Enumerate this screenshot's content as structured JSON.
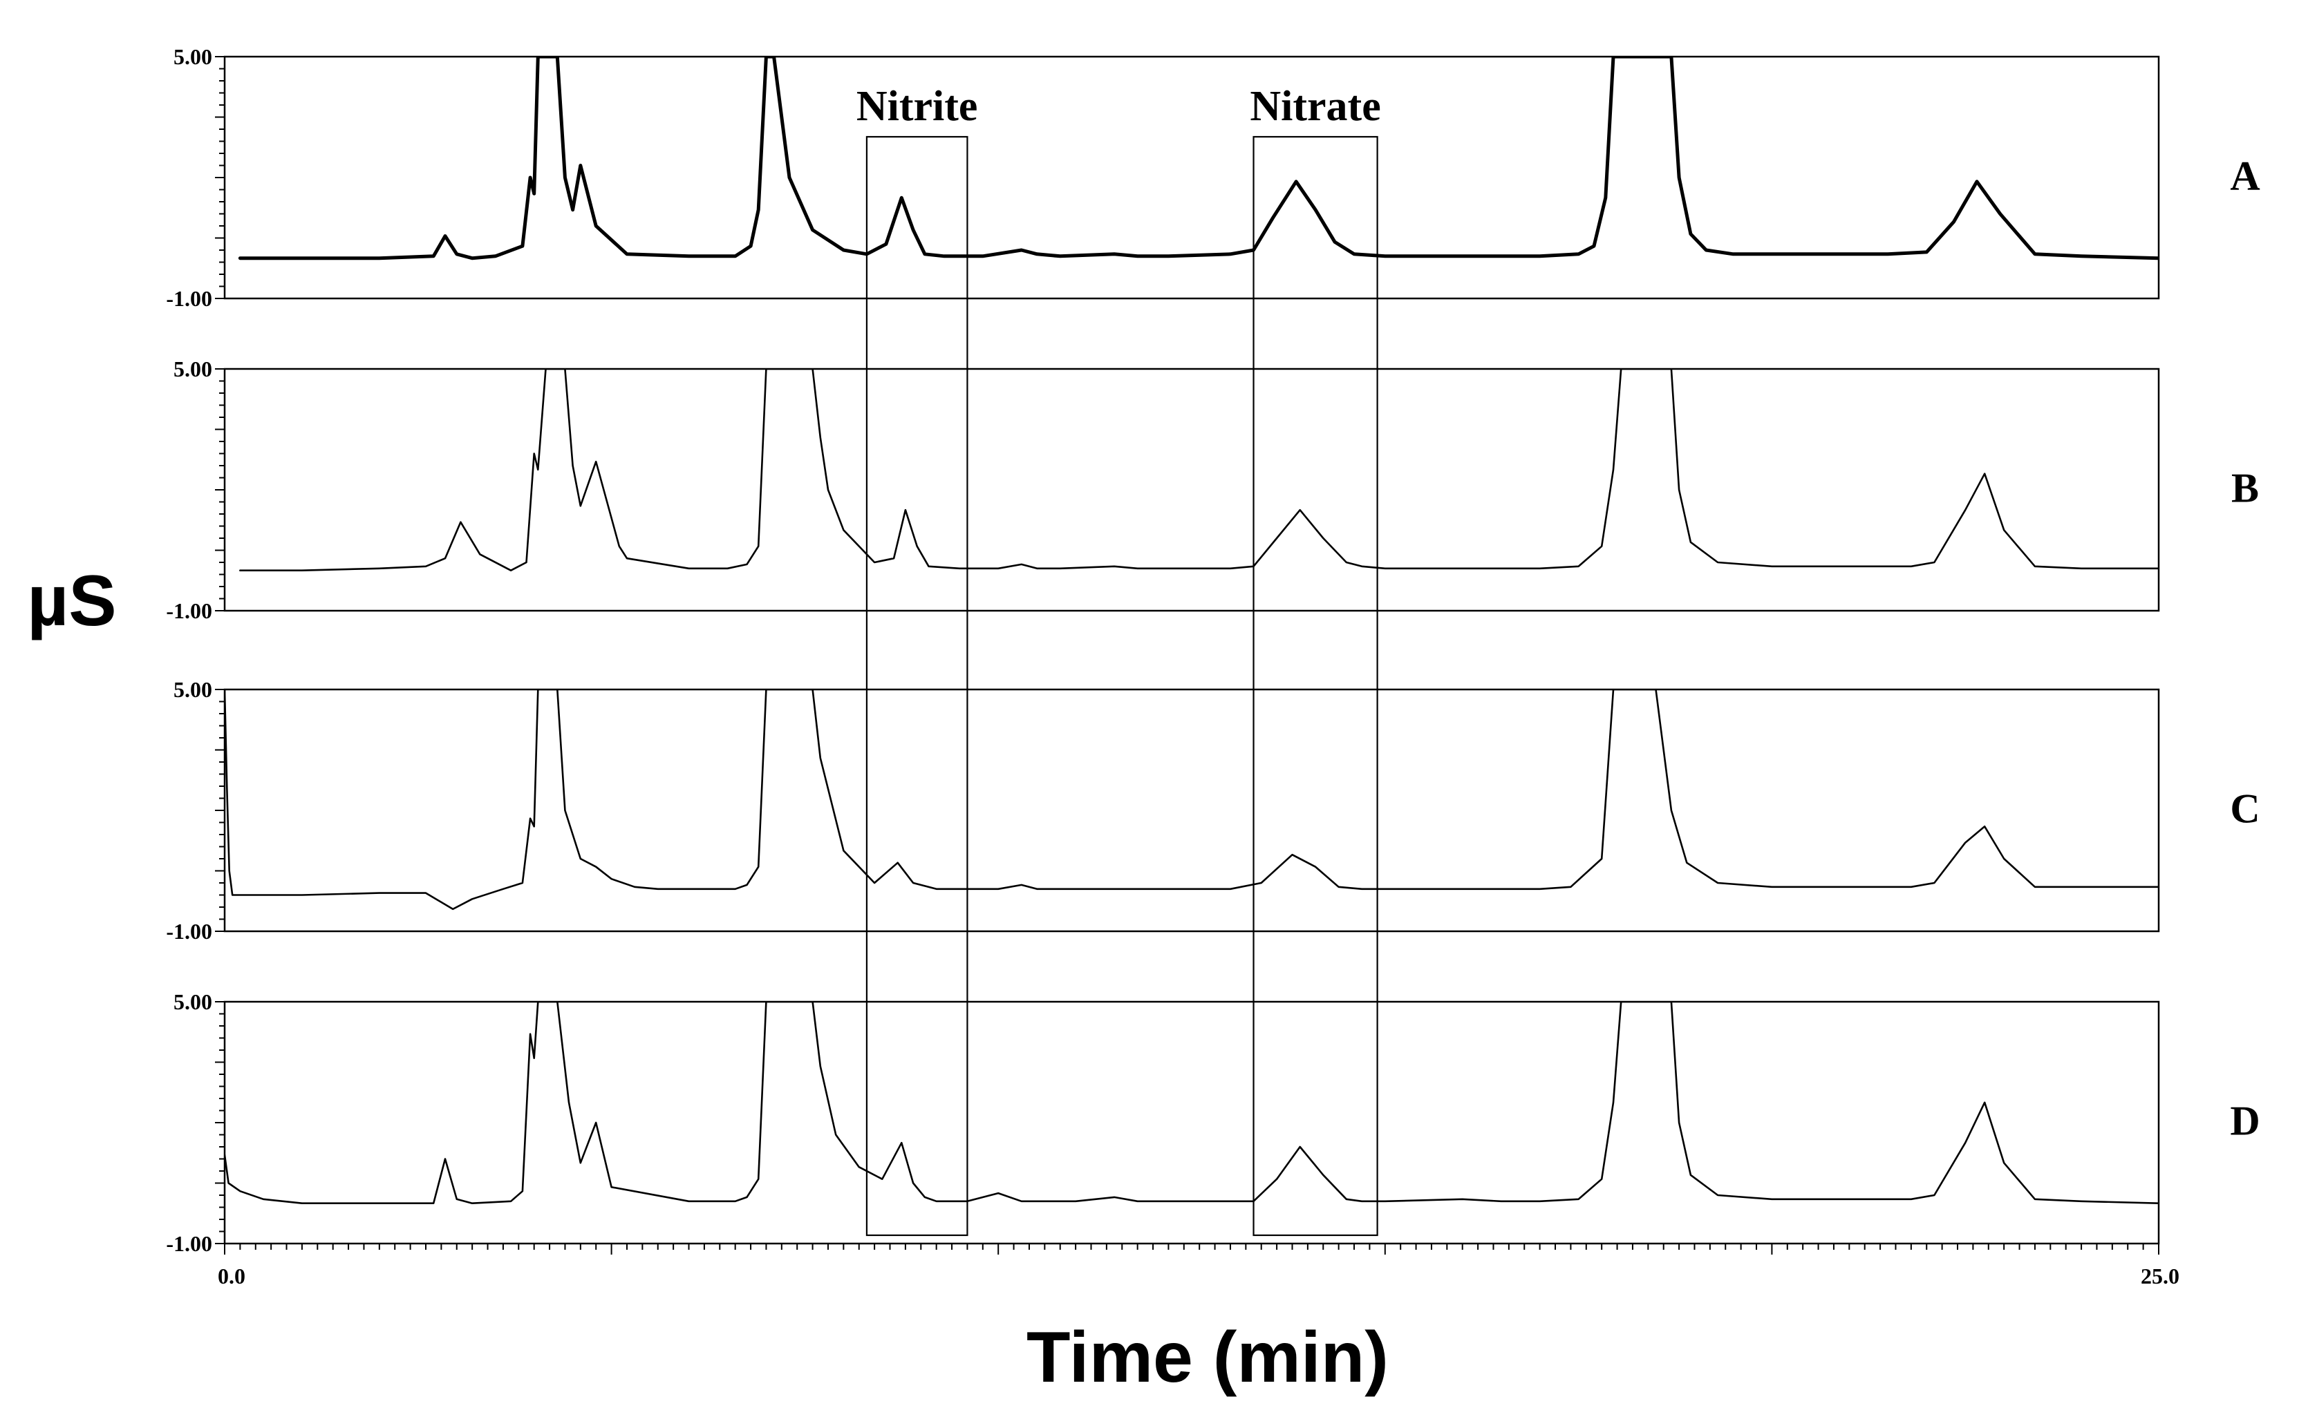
{
  "chart_data": {
    "type": "line",
    "xlabel": "Time (min)",
    "ylabel": "µS",
    "xlim": [
      0.0,
      25.0
    ],
    "ylim": [
      -1.0,
      5.0
    ],
    "x_tick_labels": [
      "0.0",
      "25.0"
    ],
    "y_tick_labels": [
      "5.00",
      "-1.00"
    ],
    "line_color": "#000000",
    "grid": false,
    "legend": "none",
    "annotations": [
      {
        "label": "Nitrite",
        "x_range": [
          8.3,
          9.6
        ]
      },
      {
        "label": "Nitrate",
        "x_range": [
          13.3,
          14.9
        ]
      }
    ],
    "series": [
      {
        "name": "A",
        "emphasis": "bold",
        "x": [
          0.2,
          1.0,
          2.0,
          2.7,
          2.85,
          3.0,
          3.2,
          3.5,
          3.85,
          3.95,
          4.0,
          4.05,
          4.15,
          4.3,
          4.4,
          4.5,
          4.6,
          4.8,
          5.2,
          6.0,
          6.6,
          6.8,
          6.9,
          7.0,
          7.1,
          7.3,
          7.6,
          8.0,
          8.3,
          8.55,
          8.75,
          8.9,
          9.05,
          9.3,
          9.8,
          10.3,
          10.5,
          10.8,
          11.5,
          11.8,
          12.2,
          13.0,
          13.3,
          13.55,
          13.85,
          14.1,
          14.35,
          14.6,
          15.0,
          16.0,
          17.0,
          17.5,
          17.7,
          17.85,
          17.95,
          18.7,
          18.8,
          18.95,
          19.15,
          19.5,
          20.0,
          20.8,
          21.5,
          22.0,
          22.35,
          22.65,
          22.95,
          23.4,
          24.0,
          25.0
        ],
        "y": [
          0.0,
          0.0,
          0.0,
          0.05,
          0.55,
          0.1,
          0.0,
          0.05,
          0.3,
          2.0,
          1.6,
          5.0,
          5.0,
          5.0,
          2.0,
          1.2,
          2.3,
          0.8,
          0.1,
          0.05,
          0.05,
          0.3,
          1.2,
          5.0,
          5.0,
          2.0,
          0.7,
          0.2,
          0.1,
          0.35,
          1.5,
          0.7,
          0.1,
          0.05,
          0.05,
          0.2,
          0.1,
          0.05,
          0.1,
          0.05,
          0.05,
          0.1,
          0.2,
          1.0,
          1.9,
          1.2,
          0.4,
          0.1,
          0.05,
          0.05,
          0.05,
          0.1,
          0.3,
          1.5,
          5.0,
          5.0,
          2.0,
          0.6,
          0.2,
          0.1,
          0.1,
          0.1,
          0.1,
          0.15,
          0.9,
          1.9,
          1.1,
          0.1,
          0.05,
          0.0
        ]
      },
      {
        "name": "B",
        "emphasis": "normal",
        "x": [
          0.2,
          1.0,
          2.0,
          2.6,
          2.85,
          3.05,
          3.3,
          3.7,
          3.9,
          4.0,
          4.05,
          4.15,
          4.3,
          4.4,
          4.5,
          4.6,
          4.8,
          5.1,
          5.2,
          6.0,
          6.5,
          6.75,
          6.9,
          7.0,
          7.1,
          7.6,
          7.7,
          7.8,
          8.0,
          8.4,
          8.65,
          8.8,
          8.95,
          9.1,
          9.5,
          10.0,
          10.3,
          10.5,
          10.8,
          11.5,
          11.8,
          12.2,
          13.0,
          13.3,
          13.6,
          13.9,
          14.2,
          14.5,
          14.7,
          15.0,
          16.0,
          17.0,
          17.5,
          17.8,
          17.95,
          18.05,
          18.7,
          18.8,
          18.95,
          19.3,
          20.0,
          21.0,
          21.8,
          22.1,
          22.5,
          22.75,
          23.0,
          23.4,
          24.0,
          25.0
        ],
        "y": [
          0.0,
          0.0,
          0.05,
          0.1,
          0.3,
          1.2,
          0.4,
          0.0,
          0.2,
          2.9,
          2.5,
          5.0,
          5.0,
          5.0,
          2.6,
          1.6,
          2.7,
          0.6,
          0.3,
          0.05,
          0.05,
          0.15,
          0.6,
          5.0,
          5.0,
          5.0,
          3.3,
          2.0,
          1.0,
          0.2,
          0.3,
          1.5,
          0.6,
          0.1,
          0.05,
          0.05,
          0.15,
          0.05,
          0.05,
          0.1,
          0.05,
          0.05,
          0.05,
          0.1,
          0.8,
          1.5,
          0.8,
          0.2,
          0.1,
          0.05,
          0.05,
          0.05,
          0.1,
          0.6,
          2.5,
          5.0,
          5.0,
          2.0,
          0.7,
          0.2,
          0.1,
          0.1,
          0.1,
          0.2,
          1.5,
          2.4,
          1.0,
          0.1,
          0.05,
          0.05
        ]
      },
      {
        "name": "C",
        "emphasis": "normal",
        "x": [
          0.0,
          0.03,
          0.06,
          0.1,
          1.0,
          2.0,
          2.6,
          2.95,
          3.2,
          3.6,
          3.85,
          3.95,
          4.0,
          4.05,
          4.15,
          4.3,
          4.4,
          4.6,
          4.8,
          5.0,
          5.3,
          5.6,
          6.0,
          6.6,
          6.75,
          6.9,
          7.0,
          7.1,
          7.5,
          7.6,
          7.7,
          8.0,
          8.4,
          8.7,
          8.9,
          9.2,
          10.0,
          10.3,
          10.5,
          11.5,
          12.0,
          13.0,
          13.4,
          13.8,
          14.1,
          14.4,
          14.7,
          15.0,
          16.0,
          17.0,
          17.4,
          17.8,
          17.95,
          18.05,
          18.5,
          18.7,
          18.9,
          19.3,
          20.0,
          21.0,
          21.8,
          22.1,
          22.5,
          22.75,
          23.0,
          23.4,
          24.0,
          25.0
        ],
        "y": [
          5.0,
          2.5,
          0.5,
          -0.1,
          -0.1,
          -0.05,
          -0.05,
          -0.45,
          -0.2,
          0.05,
          0.2,
          1.8,
          1.6,
          5.0,
          5.0,
          5.0,
          2.0,
          0.8,
          0.6,
          0.3,
          0.1,
          0.05,
          0.05,
          0.05,
          0.15,
          0.6,
          5.0,
          5.0,
          5.0,
          5.0,
          3.3,
          1.0,
          0.2,
          0.7,
          0.2,
          0.05,
          0.05,
          0.15,
          0.05,
          0.05,
          0.05,
          0.05,
          0.2,
          0.9,
          0.6,
          0.1,
          0.05,
          0.05,
          0.05,
          0.05,
          0.1,
          0.8,
          5.0,
          5.0,
          5.0,
          2.0,
          0.7,
          0.2,
          0.1,
          0.1,
          0.1,
          0.2,
          1.2,
          1.6,
          0.8,
          0.1,
          0.1,
          0.1
        ]
      },
      {
        "name": "D",
        "emphasis": "normal",
        "x": [
          0.0,
          0.05,
          0.2,
          0.5,
          1.0,
          2.0,
          2.7,
          2.85,
          3.0,
          3.2,
          3.7,
          3.85,
          3.95,
          4.0,
          4.05,
          4.15,
          4.3,
          4.45,
          4.6,
          4.8,
          5.0,
          6.0,
          6.6,
          6.75,
          6.9,
          7.0,
          7.1,
          7.6,
          7.7,
          7.9,
          8.2,
          8.5,
          8.75,
          8.9,
          9.05,
          9.2,
          9.6,
          10.0,
          10.3,
          10.5,
          11.0,
          11.5,
          11.8,
          12.2,
          13.0,
          13.3,
          13.6,
          13.9,
          14.2,
          14.5,
          14.7,
          15.0,
          16.0,
          16.5,
          17.0,
          17.5,
          17.8,
          17.95,
          18.05,
          18.7,
          18.8,
          18.95,
          19.3,
          20.0,
          21.0,
          21.8,
          22.1,
          22.5,
          22.75,
          23.0,
          23.4,
          24.0,
          25.0
        ],
        "y": [
          1.2,
          0.5,
          0.3,
          0.1,
          0.0,
          0.0,
          0.0,
          1.1,
          0.1,
          0.0,
          0.05,
          0.3,
          4.2,
          3.6,
          5.0,
          5.0,
          5.0,
          2.5,
          1.0,
          2.0,
          0.4,
          0.05,
          0.05,
          0.15,
          0.6,
          5.0,
          5.0,
          5.0,
          3.4,
          1.7,
          0.9,
          0.6,
          1.5,
          0.5,
          0.15,
          0.05,
          0.05,
          0.25,
          0.05,
          0.05,
          0.05,
          0.15,
          0.05,
          0.05,
          0.05,
          0.05,
          0.6,
          1.4,
          0.7,
          0.1,
          0.05,
          0.05,
          0.1,
          0.05,
          0.05,
          0.1,
          0.6,
          2.5,
          5.0,
          5.0,
          2.0,
          0.7,
          0.2,
          0.1,
          0.1,
          0.1,
          0.2,
          1.5,
          2.5,
          1.0,
          0.1,
          0.05,
          0.0
        ]
      }
    ]
  }
}
